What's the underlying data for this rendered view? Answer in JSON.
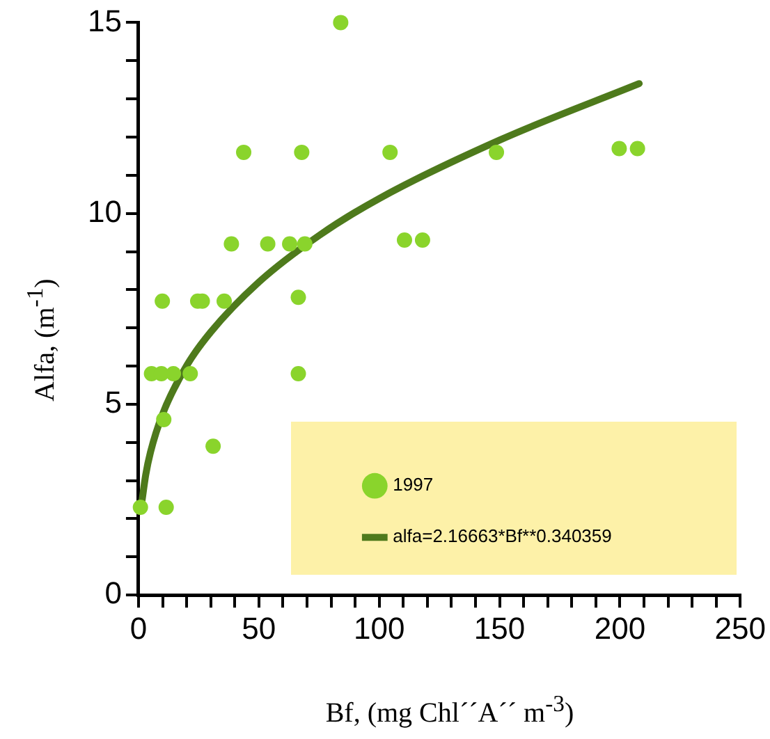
{
  "chart_data": {
    "type": "scatter",
    "xlabel": "Bf, (mg Chl´´A´´ m$^{-3}$)",
    "ylabel": "Alfa, (m$^{-1}$)",
    "xlim": [
      0,
      250
    ],
    "ylim": [
      0,
      15
    ],
    "xticks": [
      0,
      {
        "value": 10,
        "label": null
      },
      {
        "value": 20,
        "label": null
      },
      {
        "value": 30,
        "label": null
      },
      {
        "value": 40,
        "label": null
      },
      50,
      {
        "value": 60,
        "label": null
      },
      {
        "value": 70,
        "label": null
      },
      {
        "value": 80,
        "label": null
      },
      {
        "value": 90,
        "label": null
      },
      100,
      {
        "value": 110,
        "label": null
      },
      {
        "value": 120,
        "label": null
      },
      {
        "value": 130,
        "label": null
      },
      {
        "value": 140,
        "label": null
      },
      150,
      {
        "value": 160,
        "label": null
      },
      {
        "value": 170,
        "label": null
      },
      {
        "value": 180,
        "label": null
      },
      {
        "value": 190,
        "label": null
      },
      200,
      {
        "value": 210,
        "label": null
      },
      {
        "value": 220,
        "label": null
      },
      {
        "value": 230,
        "label": null
      },
      {
        "value": 240,
        "label": null
      },
      250
    ],
    "yticks": [
      0,
      {
        "value": 1,
        "label": null
      },
      {
        "value": 2,
        "label": null
      },
      {
        "value": 3,
        "label": null
      },
      {
        "value": 4,
        "label": null
      },
      5,
      {
        "value": 6,
        "label": null
      },
      {
        "value": 7,
        "label": null
      },
      {
        "value": 8,
        "label": null
      },
      {
        "value": 9,
        "label": null
      },
      10,
      {
        "value": 11,
        "label": null
      },
      {
        "value": 12,
        "label": null
      },
      {
        "value": 13,
        "label": null
      },
      {
        "value": 14,
        "label": null
      },
      15
    ],
    "grid": false,
    "legend": "bottom right",
    "marker": "circle",
    "series": [
      {
        "name": "1997",
        "type": "scatter",
        "color": "#8ad42c",
        "x": [
          84,
          43.7,
          67.8,
          104.5,
          148.7,
          199.7,
          207.3,
          38.6,
          53.7,
          62.8,
          69.1,
          110.5,
          118,
          9.9,
          24.6,
          26.5,
          35.6,
          66.4,
          5.4,
          9.5,
          14.5,
          21.5,
          66.4,
          10.5,
          31,
          0.8,
          11.5
        ],
        "values": [
          15,
          11.6,
          11.6,
          11.6,
          11.6,
          11.7,
          11.7,
          9.2,
          9.2,
          9.2,
          9.2,
          9.3,
          9.3,
          7.7,
          7.7,
          7.7,
          7.7,
          7.8,
          5.8,
          5.8,
          5.8,
          5.8,
          5.8,
          4.6,
          3.9,
          2.3,
          2.3
        ]
      },
      {
        "name": "alfa=2.16663*Bf**0.340359",
        "type": "line",
        "color": "#4e7a1c",
        "marker": "none",
        "x": [
          1.5,
          3,
          5,
          10,
          20,
          30,
          50,
          75,
          100,
          150,
          208
        ],
        "values": [
          2.49,
          3.15,
          3.75,
          4.74,
          6.01,
          6.89,
          8.2,
          9.42,
          10.39,
          11.92,
          13.4
        ]
      }
    ]
  }
}
